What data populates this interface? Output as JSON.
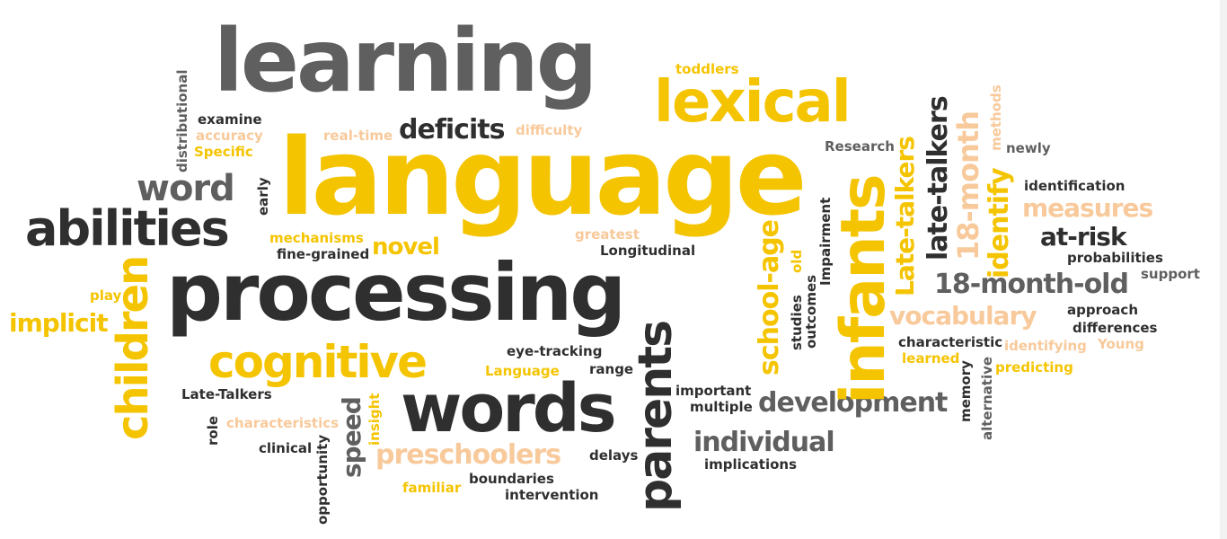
{
  "palette": {
    "yellow": "#f5c400",
    "peach": "#f8c99a",
    "gray": "#5f5f5f",
    "dark": "#2f2f2f",
    "background": "#ffffff"
  },
  "words": [
    {
      "text": "learning",
      "color": "gray"
    },
    {
      "text": "language",
      "color": "yellow"
    },
    {
      "text": "processing",
      "color": "dark"
    },
    {
      "text": "lexical",
      "color": "yellow"
    },
    {
      "text": "abilities",
      "color": "dark"
    },
    {
      "text": "word",
      "color": "gray"
    },
    {
      "text": "cognitive",
      "color": "yellow"
    },
    {
      "text": "words",
      "color": "dark"
    },
    {
      "text": "infants",
      "color": "yellow"
    },
    {
      "text": "children",
      "color": "yellow"
    },
    {
      "text": "parents",
      "color": "dark"
    },
    {
      "text": "development",
      "color": "gray"
    },
    {
      "text": "individual",
      "color": "gray"
    },
    {
      "text": "preschoolers",
      "color": "peach"
    },
    {
      "text": "deficits",
      "color": "dark"
    },
    {
      "text": "vocabulary",
      "color": "peach"
    },
    {
      "text": "measures",
      "color": "peach"
    },
    {
      "text": "18-month-old",
      "color": "gray"
    },
    {
      "text": "at-risk",
      "color": "dark"
    },
    {
      "text": "late-talkers",
      "color": "dark"
    },
    {
      "text": "Late-talkers",
      "color": "yellow"
    },
    {
      "text": "18-month",
      "color": "peach"
    },
    {
      "text": "identify",
      "color": "yellow"
    },
    {
      "text": "school-age",
      "color": "yellow"
    },
    {
      "text": "implicit",
      "color": "yellow"
    },
    {
      "text": "novel",
      "color": "yellow"
    },
    {
      "text": "speed",
      "color": "gray"
    },
    {
      "text": "toddlers",
      "color": "yellow"
    },
    {
      "text": "difficulty",
      "color": "peach"
    },
    {
      "text": "real-time",
      "color": "peach"
    },
    {
      "text": "examine",
      "color": "dark"
    },
    {
      "text": "accuracy",
      "color": "peach"
    },
    {
      "text": "Specific",
      "color": "yellow"
    },
    {
      "text": "distributional",
      "color": "gray"
    },
    {
      "text": "early",
      "color": "dark"
    },
    {
      "text": "mechanisms",
      "color": "yellow"
    },
    {
      "text": "fine-grained",
      "color": "dark"
    },
    {
      "text": "greatest",
      "color": "peach"
    },
    {
      "text": "Longitudinal",
      "color": "dark"
    },
    {
      "text": "Research",
      "color": "gray"
    },
    {
      "text": "newly",
      "color": "gray"
    },
    {
      "text": "methods",
      "color": "peach"
    },
    {
      "text": "identification",
      "color": "dark"
    },
    {
      "text": "probabilities",
      "color": "dark"
    },
    {
      "text": "support",
      "color": "gray"
    },
    {
      "text": "approach",
      "color": "dark"
    },
    {
      "text": "differences",
      "color": "dark"
    },
    {
      "text": "Young",
      "color": "peach"
    },
    {
      "text": "identifying",
      "color": "peach"
    },
    {
      "text": "predicting",
      "color": "yellow"
    },
    {
      "text": "characteristic",
      "color": "dark"
    },
    {
      "text": "learned",
      "color": "yellow"
    },
    {
      "text": "memory",
      "color": "dark"
    },
    {
      "text": "alternative",
      "color": "gray"
    },
    {
      "text": "Impairment",
      "color": "dark"
    },
    {
      "text": "old",
      "color": "yellow"
    },
    {
      "text": "studies",
      "color": "dark"
    },
    {
      "text": "outcomes",
      "color": "dark"
    },
    {
      "text": "play",
      "color": "yellow"
    },
    {
      "text": "eye-tracking",
      "color": "dark"
    },
    {
      "text": "Language",
      "color": "yellow"
    },
    {
      "text": "range",
      "color": "dark"
    },
    {
      "text": "important",
      "color": "dark"
    },
    {
      "text": "multiple",
      "color": "dark"
    },
    {
      "text": "Late-Talkers",
      "color": "dark"
    },
    {
      "text": "characteristics",
      "color": "peach"
    },
    {
      "text": "role",
      "color": "dark"
    },
    {
      "text": "clinical",
      "color": "dark"
    },
    {
      "text": "insight",
      "color": "yellow"
    },
    {
      "text": "opportunity",
      "color": "dark"
    },
    {
      "text": "delays",
      "color": "dark"
    },
    {
      "text": "implications",
      "color": "dark"
    },
    {
      "text": "boundaries",
      "color": "dark"
    },
    {
      "text": "familiar",
      "color": "yellow"
    },
    {
      "text": "intervention",
      "color": "dark"
    }
  ]
}
